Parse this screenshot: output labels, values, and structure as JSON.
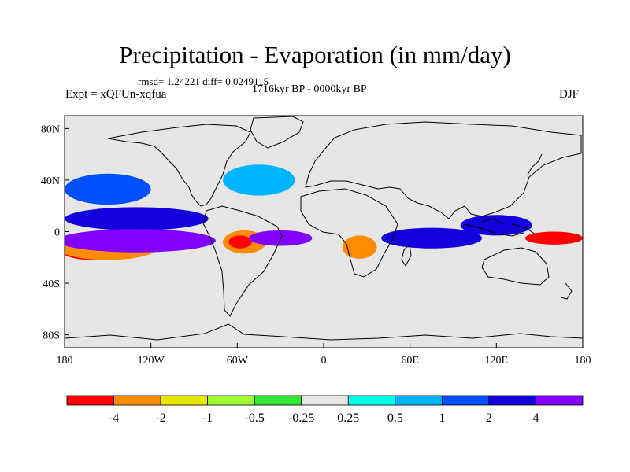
{
  "figure": {
    "title": "Precipitation - Evaporation (in mm/day)",
    "stats": "rmsd= 1.24221 diff= 0.0249115",
    "period": "1716kyr BP - 0000kyr BP",
    "experiment": "Expt = xQFUn-xqfua",
    "season": "DJF"
  },
  "chart_data": {
    "type": "heatmap",
    "title": "Precipitation - Evaporation (in mm/day)",
    "variable": "Precipitation - Evaporation",
    "units": "mm/day",
    "period": "1716kyr BP - 0000kyr BP",
    "experiment": "Expt = xQFUn-xqfua",
    "season": "DJF",
    "rmsd": 1.24221,
    "diff": 0.0249115,
    "xlim": [
      -180,
      180
    ],
    "ylim": [
      -90,
      90
    ],
    "x_ticks": [
      {
        "value": -180,
        "label": "180"
      },
      {
        "value": -120,
        "label": "120W"
      },
      {
        "value": -60,
        "label": "60W"
      },
      {
        "value": 0,
        "label": "0"
      },
      {
        "value": 60,
        "label": "60E"
      },
      {
        "value": 120,
        "label": "120E"
      },
      {
        "value": 180,
        "label": "180"
      }
    ],
    "y_ticks": [
      {
        "value": 80,
        "label": "80N"
      },
      {
        "value": 40,
        "label": "40N"
      },
      {
        "value": 0,
        "label": "0"
      },
      {
        "value": -40,
        "label": "40S"
      },
      {
        "value": -80,
        "label": "80S"
      }
    ],
    "colorbar": {
      "levels": [
        -4,
        -2,
        -1,
        -0.5,
        -0.25,
        0.25,
        0.5,
        1,
        2,
        4
      ],
      "labels": [
        "-4",
        "-2",
        "-1",
        "-0.5",
        "-0.25",
        "0.25",
        "0.5",
        "1",
        "2",
        "4"
      ],
      "colors": [
        "#ff0000",
        "#ff8c00",
        "#e6e600",
        "#a0ff32",
        "#32e632",
        "#e6e6e6",
        "#00ffe6",
        "#00b4ff",
        "#0050ff",
        "#1400dc",
        "#8200ff"
      ]
    },
    "features": [
      {
        "name": "South Pacific dipole",
        "lon": -160,
        "lat": -15,
        "rx": 22,
        "ry": 7,
        "class": 0
      },
      {
        "name": "South Pacific drying",
        "lon": -150,
        "lat": -12,
        "rx": 35,
        "ry": 10,
        "class": 1
      },
      {
        "name": "North Pacific ITCZ",
        "lon": -130,
        "lat": 10,
        "rx": 50,
        "ry": 9,
        "class": 9
      },
      {
        "name": "Pacific equatorial band",
        "lon": -130,
        "lat": -7,
        "rx": 55,
        "ry": 9,
        "class": 10
      },
      {
        "name": "North Pacific storm track",
        "lon": -150,
        "lat": 33,
        "rx": 30,
        "ry": 12,
        "class": 8
      },
      {
        "name": "Amazon drying",
        "lon": -55,
        "lat": -8,
        "rx": 15,
        "ry": 9,
        "class": 1
      },
      {
        "name": "Amazon core",
        "lon": -58,
        "lat": -8,
        "rx": 8,
        "ry": 5,
        "class": 0
      },
      {
        "name": "Atlantic ITCZ",
        "lon": -30,
        "lat": -5,
        "rx": 22,
        "ry": 6,
        "class": 10
      },
      {
        "name": "North Atlantic",
        "lon": -45,
        "lat": 40,
        "rx": 25,
        "ry": 12,
        "class": 7
      },
      {
        "name": "Southern Africa",
        "lon": 25,
        "lat": -12,
        "rx": 12,
        "ry": 9,
        "class": 1
      },
      {
        "name": "Indian Ocean band",
        "lon": 75,
        "lat": -5,
        "rx": 35,
        "ry": 8,
        "class": 9
      },
      {
        "name": "Maritime continent",
        "lon": 120,
        "lat": 5,
        "rx": 25,
        "ry": 8,
        "class": 9
      },
      {
        "name": "Western Pacific drying",
        "lon": 160,
        "lat": -5,
        "rx": 20,
        "ry": 5,
        "class": 0
      }
    ]
  }
}
